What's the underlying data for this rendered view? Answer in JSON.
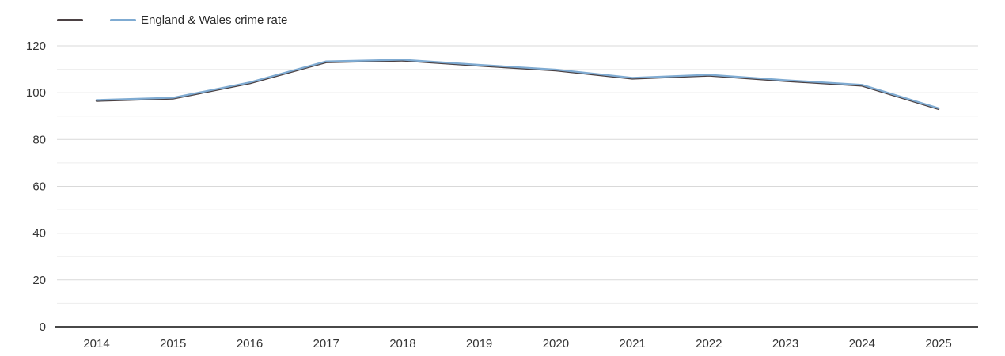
{
  "chart_data": {
    "type": "line",
    "title": "",
    "xlabel": "",
    "ylabel": "",
    "categories": [
      "2014",
      "2015",
      "2016",
      "2017",
      "2018",
      "2019",
      "2020",
      "2021",
      "2022",
      "2023",
      "2024",
      "2025"
    ],
    "series": [
      {
        "name": "",
        "color": "#4b4143",
        "values": [
          96.5,
          97.5,
          104,
          113,
          113.7,
          111.5,
          109.5,
          106,
          107.3,
          105,
          103,
          93
        ]
      },
      {
        "name": "England & Wales crime rate",
        "color": "#7fabd2",
        "values": [
          96.5,
          97.5,
          104,
          113,
          113.7,
          111.5,
          109.5,
          106,
          107.3,
          105,
          103,
          93
        ]
      }
    ],
    "ylim": [
      0,
      120
    ],
    "y_tick_labels": [
      "0",
      "20",
      "40",
      "60",
      "80",
      "100",
      "120"
    ],
    "y_major_step": 20,
    "y_minor_step": 10,
    "grid": true,
    "legend_position": "top-left"
  },
  "colors": {
    "background": "#ffffff",
    "axis_line": "#2e2e2e",
    "grid_major": "#d9d9d9",
    "grid_minor": "#ededed",
    "tick_text": "#333333"
  }
}
